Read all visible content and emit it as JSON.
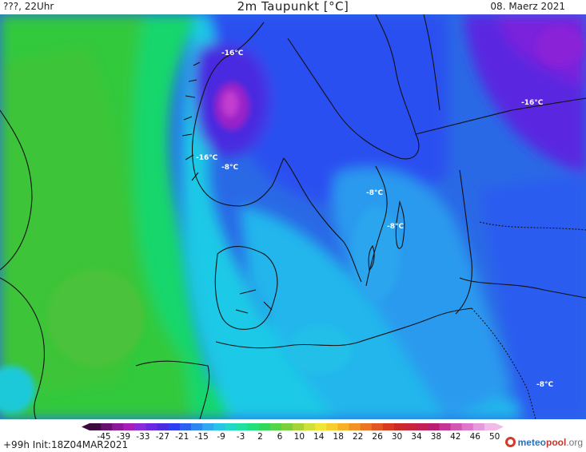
{
  "header": {
    "left": "???, 22Uhr",
    "title": "2m Taupunkt [°C]",
    "date": "08. Maerz 2021"
  },
  "labels": [
    "-16°C",
    "-16°C",
    "-8°C",
    "-8°C",
    "-8°C",
    "-16°C",
    "-8°C"
  ],
  "colorbar": {
    "ticks": [
      "-45",
      "-39",
      "-33",
      "-27",
      "-21",
      "-15",
      "-9",
      "-3",
      "2",
      "6",
      "10",
      "14",
      "18",
      "22",
      "26",
      "30",
      "34",
      "38",
      "42",
      "46",
      "50"
    ],
    "colors": [
      "#3d0a3d",
      "#66116e",
      "#8c189a",
      "#a81fb8",
      "#8a2ad8",
      "#6a28e0",
      "#4a2be0",
      "#2d3ff0",
      "#2a62f0",
      "#2e86ef",
      "#2fa8ee",
      "#26c4e6",
      "#1fd8c8",
      "#1fe2a2",
      "#1fe07a",
      "#2ed85a",
      "#52d548",
      "#7ad13d",
      "#a6d23a",
      "#cfe03a",
      "#f1e635",
      "#f6cf2e",
      "#f6b02a",
      "#f29227",
      "#ec7425",
      "#e35522",
      "#d83a20",
      "#cc2a28",
      "#c8243e",
      "#c22056",
      "#ba1e72",
      "#c43596",
      "#d256b4",
      "#de77cc",
      "#e899dc",
      "#f0bbe8"
    ]
  },
  "footer": {
    "init": "+99h  Init:18Z04MAR2021",
    "logo_a": "meteo",
    "logo_b": "pool",
    "logo_c": ".org"
  }
}
